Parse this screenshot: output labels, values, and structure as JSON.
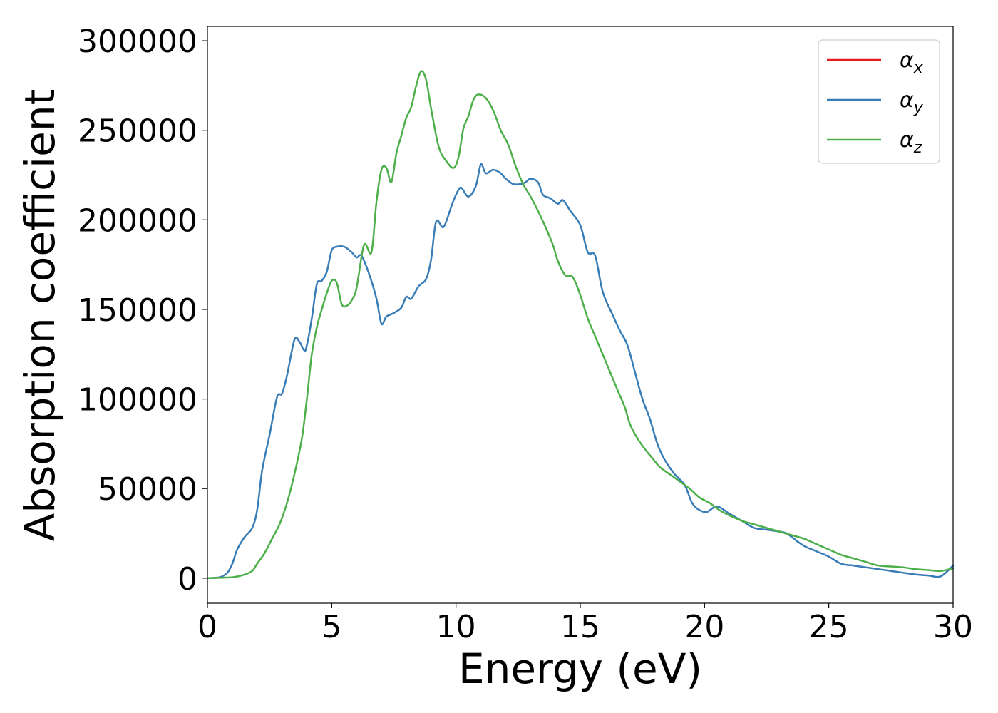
{
  "chart_data": {
    "type": "line",
    "title": "",
    "xlabel": "Energy (eV)",
    "ylabel": "Absorption coefficient",
    "xlim": [
      0,
      30
    ],
    "ylim": [
      -14000,
      308000
    ],
    "xticks": [
      0,
      5,
      10,
      15,
      20,
      25,
      30
    ],
    "yticks": [
      0,
      50000,
      100000,
      150000,
      200000,
      250000,
      300000
    ],
    "xtick_labels": [
      "0",
      "5",
      "10",
      "15",
      "20",
      "25",
      "30"
    ],
    "ytick_labels": [
      "0",
      "50000",
      "100000",
      "150000",
      "200000",
      "250000",
      "300000"
    ],
    "grid": false,
    "legend_position": "top-right",
    "series": [
      {
        "name": "α_x",
        "symbol": "α",
        "subscript": "x",
        "color": "#e41a1c",
        "x": [
          0,
          0.5,
          0.8,
          1.0,
          1.2,
          1.5,
          1.8,
          2.0,
          2.2,
          2.5,
          2.8,
          3.0,
          3.2,
          3.5,
          3.7,
          3.9,
          4.0,
          4.2,
          4.4,
          4.6,
          4.8,
          5.0,
          5.2,
          5.5,
          5.8,
          6.0,
          6.2,
          6.5,
          6.8,
          7.0,
          7.2,
          7.5,
          7.8,
          8.0,
          8.2,
          8.5,
          8.8,
          9.0,
          9.2,
          9.5,
          9.8,
          10.0,
          10.2,
          10.5,
          10.8,
          11.0,
          11.2,
          11.5,
          11.8,
          12.0,
          12.3,
          12.6,
          12.8,
          13.0,
          13.3,
          13.5,
          13.8,
          14.1,
          14.3,
          14.6,
          15.0,
          15.3,
          15.6,
          15.9,
          16.3,
          16.6,
          16.9,
          17.2,
          17.5,
          17.8,
          18.1,
          18.4,
          18.8,
          19.2,
          19.5,
          19.8,
          20.1,
          20.5,
          21.0,
          21.5,
          22.0,
          22.5,
          23.0,
          23.3,
          23.5,
          24.0,
          24.5,
          25.0,
          25.5,
          26.0,
          26.5,
          27.0,
          27.5,
          28.0,
          28.5,
          29.0,
          29.5,
          30.0
        ],
        "y": [
          0,
          500,
          3000,
          8000,
          16000,
          23000,
          28000,
          38000,
          60000,
          80000,
          101000,
          103000,
          113000,
          133000,
          132000,
          127000,
          130000,
          145000,
          164000,
          166000,
          171000,
          183000,
          185000,
          185000,
          182000,
          179000,
          180000,
          170000,
          156000,
          142000,
          146000,
          148000,
          151000,
          157000,
          156000,
          163000,
          167000,
          178000,
          199000,
          196000,
          207000,
          214000,
          218000,
          213000,
          219000,
          231000,
          226000,
          228000,
          226000,
          223000,
          220000,
          220000,
          221000,
          223000,
          221000,
          214000,
          212000,
          209000,
          211000,
          205000,
          197000,
          182000,
          180000,
          160000,
          147000,
          138000,
          130000,
          115000,
          100000,
          89000,
          75000,
          66000,
          58000,
          52000,
          42000,
          38000,
          37000,
          40000,
          36000,
          32000,
          28000,
          27000,
          26000,
          25000,
          23000,
          18000,
          15000,
          12000,
          8000,
          7000,
          6000,
          5000,
          4000,
          3000,
          2000,
          1500,
          1000,
          7000
        ],
        "linewidth": 2
      },
      {
        "name": "α_y",
        "symbol": "α",
        "subscript": "y",
        "color": "#377eb8",
        "x": [
          0,
          0.5,
          0.8,
          1.0,
          1.2,
          1.5,
          1.8,
          2.0,
          2.2,
          2.5,
          2.8,
          3.0,
          3.2,
          3.5,
          3.7,
          3.9,
          4.0,
          4.2,
          4.4,
          4.6,
          4.8,
          5.0,
          5.2,
          5.5,
          5.8,
          6.0,
          6.2,
          6.5,
          6.8,
          7.0,
          7.2,
          7.5,
          7.8,
          8.0,
          8.2,
          8.5,
          8.8,
          9.0,
          9.2,
          9.5,
          9.8,
          10.0,
          10.2,
          10.5,
          10.8,
          11.0,
          11.2,
          11.5,
          11.8,
          12.0,
          12.3,
          12.6,
          12.8,
          13.0,
          13.3,
          13.5,
          13.8,
          14.1,
          14.3,
          14.6,
          15.0,
          15.3,
          15.6,
          15.9,
          16.3,
          16.6,
          16.9,
          17.2,
          17.5,
          17.8,
          18.1,
          18.4,
          18.8,
          19.2,
          19.5,
          19.8,
          20.1,
          20.5,
          21.0,
          21.5,
          22.0,
          22.5,
          23.0,
          23.3,
          23.5,
          24.0,
          24.5,
          25.0,
          25.5,
          26.0,
          26.5,
          27.0,
          27.5,
          28.0,
          28.5,
          29.0,
          29.5,
          30.0
        ],
        "y": [
          0,
          500,
          3000,
          8000,
          16000,
          23000,
          28000,
          38000,
          60000,
          80000,
          101000,
          103000,
          113000,
          133000,
          132000,
          127000,
          130000,
          145000,
          164000,
          166000,
          171000,
          183000,
          185000,
          185000,
          182000,
          179000,
          180000,
          170000,
          156000,
          142000,
          146000,
          148000,
          151000,
          157000,
          156000,
          163000,
          167000,
          178000,
          199000,
          196000,
          207000,
          214000,
          218000,
          213000,
          219000,
          231000,
          226000,
          228000,
          226000,
          223000,
          220000,
          220000,
          221000,
          223000,
          221000,
          214000,
          212000,
          209000,
          211000,
          205000,
          197000,
          182000,
          180000,
          160000,
          147000,
          138000,
          130000,
          115000,
          100000,
          89000,
          75000,
          66000,
          58000,
          52000,
          42000,
          38000,
          37000,
          40000,
          36000,
          32000,
          28000,
          27000,
          26000,
          25000,
          23000,
          18000,
          15000,
          12000,
          8000,
          7000,
          6000,
          5000,
          4000,
          3000,
          2000,
          1500,
          1000,
          7000
        ],
        "linewidth": 2.5
      },
      {
        "name": "α_z",
        "symbol": "α",
        "subscript": "z",
        "color": "#4daf4a",
        "x": [
          0,
          1.0,
          1.5,
          1.8,
          2.0,
          2.3,
          2.6,
          2.9,
          3.2,
          3.5,
          3.8,
          4.0,
          4.2,
          4.4,
          4.6,
          4.8,
          5.0,
          5.2,
          5.4,
          5.6,
          5.8,
          6.0,
          6.3,
          6.6,
          6.8,
          7.0,
          7.2,
          7.4,
          7.6,
          7.8,
          8.0,
          8.2,
          8.4,
          8.6,
          8.8,
          9.0,
          9.3,
          9.6,
          9.9,
          10.1,
          10.3,
          10.5,
          10.7,
          10.9,
          11.2,
          11.5,
          11.8,
          12.1,
          12.4,
          12.7,
          13.0,
          13.3,
          13.6,
          13.9,
          14.1,
          14.4,
          14.7,
          15.0,
          15.3,
          15.6,
          15.9,
          16.2,
          16.5,
          16.8,
          17.0,
          17.3,
          17.6,
          17.9,
          18.2,
          18.6,
          19.0,
          19.4,
          19.8,
          20.2,
          20.6,
          21.0,
          21.5,
          22.0,
          22.5,
          23.0,
          23.5,
          24.0,
          24.5,
          25.0,
          25.5,
          26.0,
          26.5,
          27.0,
          27.5,
          28.0,
          28.5,
          29.0,
          29.5,
          30.0
        ],
        "y": [
          0,
          500,
          2000,
          4000,
          8000,
          14000,
          22000,
          30000,
          42000,
          58000,
          78000,
          100000,
          125000,
          140000,
          150000,
          159000,
          166000,
          165000,
          153000,
          152000,
          155000,
          162000,
          186000,
          182000,
          210000,
          228000,
          229000,
          221000,
          237000,
          247000,
          257000,
          263000,
          275000,
          283000,
          278000,
          262000,
          241000,
          233000,
          229000,
          235000,
          251000,
          258000,
          267000,
          270000,
          268000,
          261000,
          250000,
          242000,
          230000,
          220000,
          213000,
          205000,
          196000,
          186000,
          177000,
          169000,
          168000,
          158000,
          145000,
          135000,
          125000,
          115000,
          105000,
          95000,
          86000,
          78000,
          72000,
          67000,
          62000,
          58000,
          54000,
          50000,
          45000,
          42000,
          38000,
          35000,
          32000,
          30000,
          28000,
          26000,
          24000,
          22000,
          19000,
          16000,
          13000,
          11000,
          9000,
          7000,
          6500,
          6000,
          5000,
          4500,
          4000,
          5500
        ],
        "linewidth": 2.5
      }
    ]
  }
}
